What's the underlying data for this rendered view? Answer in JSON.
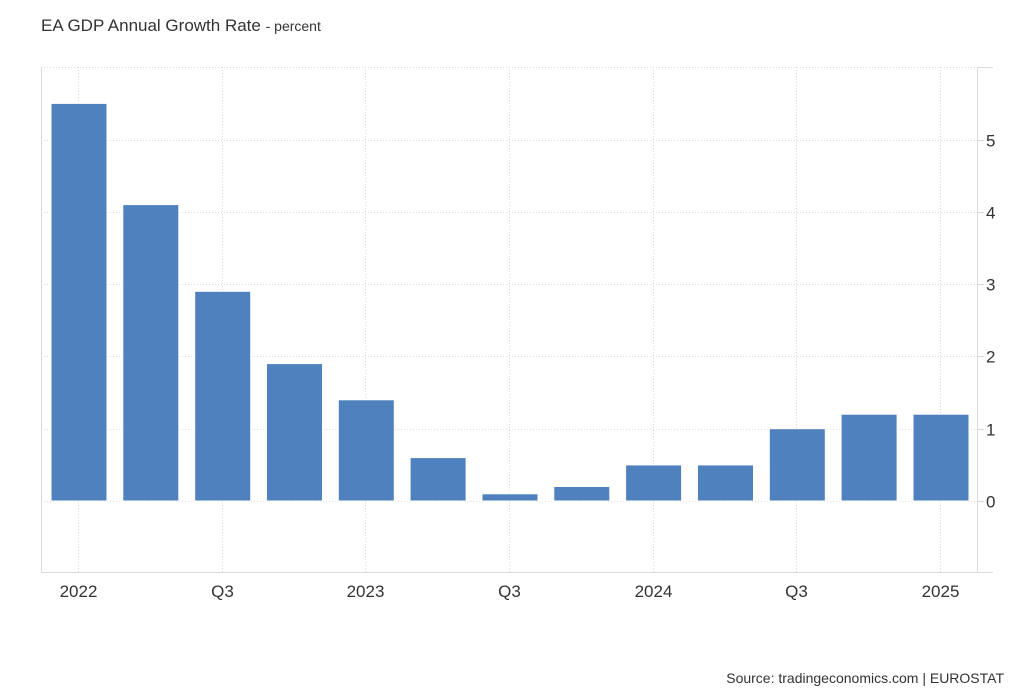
{
  "header": {
    "title": "EA GDP Annual Growth Rate",
    "unit_label": "- percent"
  },
  "footer": {
    "source": "Source: tradingeconomics.com | EUROSTAT"
  },
  "colors": {
    "bar": "#4e81bd",
    "grid": "#d9d9d9",
    "axis": "#d9d9d9",
    "text": "#333333"
  },
  "chart_data": {
    "type": "bar",
    "title": "EA GDP Annual Growth Rate - percent",
    "xlabel": "",
    "ylabel": "percent",
    "categories": [
      "2022 Q1",
      "2022 Q2",
      "2022 Q3",
      "2022 Q4",
      "2023 Q1",
      "2023 Q2",
      "2023 Q3",
      "2023 Q4",
      "2024 Q1",
      "2024 Q2",
      "2024 Q3",
      "2024 Q4",
      "2025 Q1"
    ],
    "values": [
      5.5,
      4.1,
      2.9,
      1.9,
      1.4,
      0.6,
      0.1,
      0.2,
      0.5,
      0.5,
      1.0,
      1.2,
      1.2
    ],
    "x_tick_labels": [
      {
        "index": 0,
        "label": "2022"
      },
      {
        "index": 2,
        "label": "Q3"
      },
      {
        "index": 4,
        "label": "2023"
      },
      {
        "index": 6,
        "label": "Q3"
      },
      {
        "index": 8,
        "label": "2024"
      },
      {
        "index": 10,
        "label": "Q3"
      },
      {
        "index": 12,
        "label": "2025"
      }
    ],
    "y_ticks": [
      0,
      1,
      2,
      3,
      4,
      5
    ],
    "ylim": [
      -1,
      6
    ],
    "y_axis_side": "right",
    "grid": true,
    "legend": "none",
    "source": "tradingeconomics.com | EUROSTAT"
  }
}
